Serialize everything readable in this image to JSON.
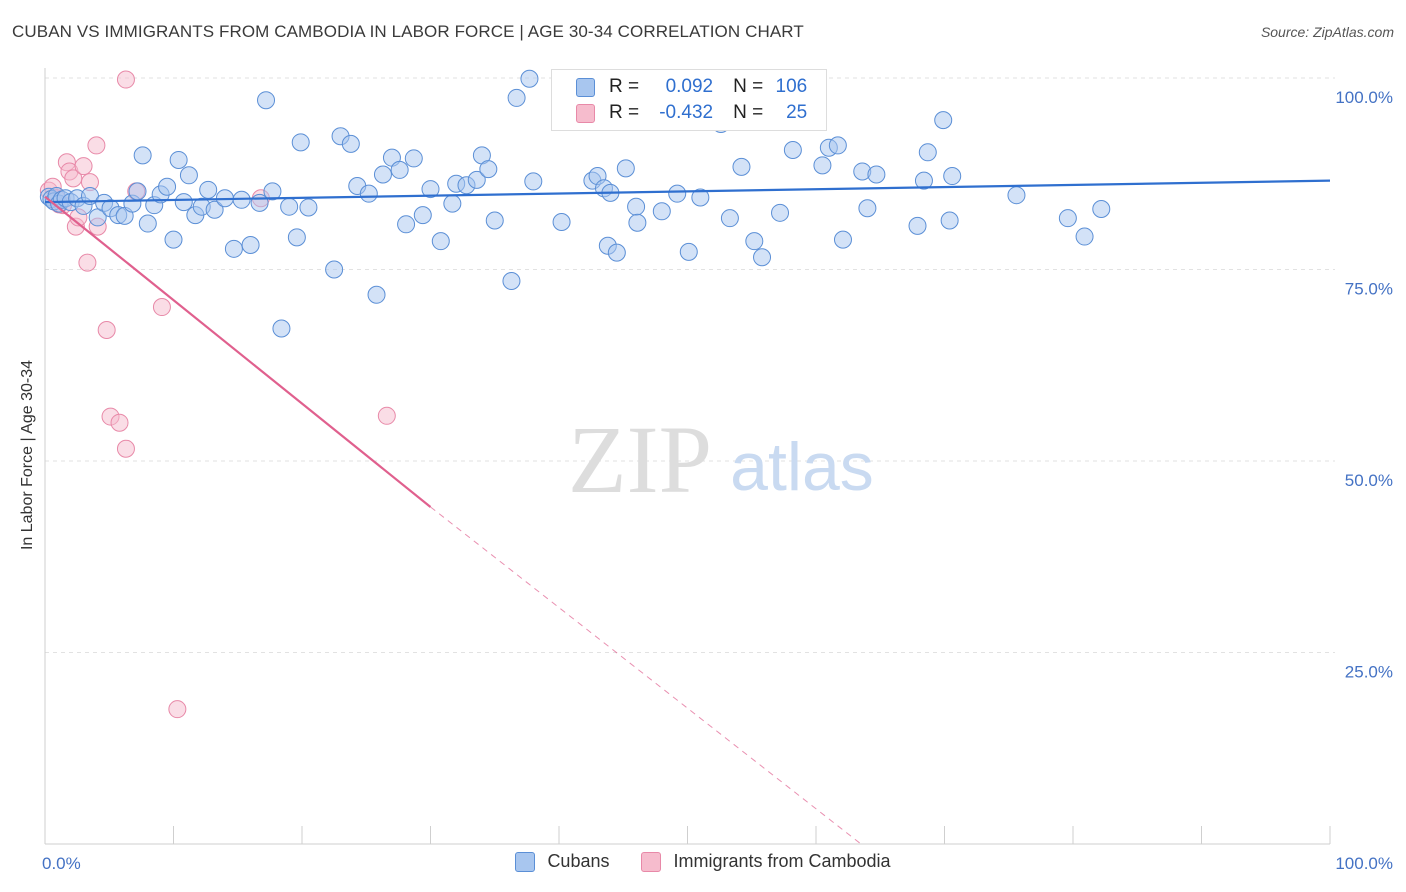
{
  "header": {
    "title": "CUBAN VS IMMIGRANTS FROM CAMBODIA IN LABOR FORCE | AGE 30-34 CORRELATION CHART",
    "source": "Source: ZipAtlas.com"
  },
  "watermark": {
    "zip": "ZIP",
    "atlas": "atlas"
  },
  "colors": {
    "cubans_fill": "#a8c6ef",
    "cubans_stroke": "#5b8fd6",
    "cubans_line": "#2f6fcf",
    "cambodia_fill": "#f6bccd",
    "cambodia_stroke": "#e889a8",
    "cambodia_line": "#e0608e",
    "axis_text": "#4472c4",
    "grid": "#e2e2e2"
  },
  "legend_top": {
    "rows": [
      {
        "r_label": "R =",
        "r_value": "0.092",
        "n_label": "N =",
        "n_value": "106"
      },
      {
        "r_label": "R =",
        "r_value": "-0.432",
        "n_label": "N =",
        "n_value": "25"
      }
    ]
  },
  "legend_bottom": {
    "items": [
      "Cubans",
      "Immigrants from Cambodia"
    ]
  },
  "chart_data": {
    "type": "scatter",
    "title": "CUBAN VS IMMIGRANTS FROM CAMBODIA IN LABOR FORCE | AGE 30-34 CORRELATION CHART",
    "xlabel": "",
    "ylabel": "In Labor Force | Age 30-34",
    "xlim": [
      0,
      100
    ],
    "ylim": [
      0,
      100
    ],
    "x_tick_labels": [
      "0.0%",
      "100.0%"
    ],
    "y_ticks": [
      25,
      50,
      75,
      100
    ],
    "y_tick_labels": [
      "25.0%",
      "50.0%",
      "75.0%",
      "100.0%"
    ],
    "grid": true,
    "legend_position": "bottom",
    "series": [
      {
        "name": "Cubans",
        "r": 0.092,
        "n": 106,
        "trend": {
          "x": [
            0,
            100
          ],
          "y": [
            83.8,
            86.6
          ]
        },
        "points": [
          [
            0.3,
            84.5
          ],
          [
            0.5,
            84.2
          ],
          [
            0.7,
            83.9
          ],
          [
            0.9,
            84.6
          ],
          [
            1.1,
            83.6
          ],
          [
            1.3,
            84.1
          ],
          [
            1.6,
            84.3
          ],
          [
            2.0,
            83.8
          ],
          [
            2.5,
            84.3
          ],
          [
            3.0,
            83.3
          ],
          [
            3.5,
            84.6
          ],
          [
            4.1,
            81.8
          ],
          [
            4.6,
            83.7
          ],
          [
            5.1,
            83.0
          ],
          [
            5.7,
            82.1
          ],
          [
            6.2,
            82.0
          ],
          [
            6.8,
            83.6
          ],
          [
            7.2,
            85.2
          ],
          [
            7.6,
            89.9
          ],
          [
            8.0,
            81.0
          ],
          [
            8.5,
            83.4
          ],
          [
            9.0,
            84.8
          ],
          [
            9.5,
            85.8
          ],
          [
            10.0,
            78.9
          ],
          [
            10.4,
            89.3
          ],
          [
            10.8,
            83.8
          ],
          [
            11.2,
            87.3
          ],
          [
            11.7,
            82.1
          ],
          [
            12.2,
            83.2
          ],
          [
            12.7,
            85.4
          ],
          [
            13.2,
            82.8
          ],
          [
            14.0,
            84.3
          ],
          [
            14.7,
            77.7
          ],
          [
            15.3,
            84.1
          ],
          [
            16.0,
            78.2
          ],
          [
            16.7,
            83.7
          ],
          [
            17.2,
            97.1
          ],
          [
            17.7,
            85.2
          ],
          [
            18.4,
            67.3
          ],
          [
            19.0,
            83.2
          ],
          [
            19.6,
            79.2
          ],
          [
            19.9,
            91.6
          ],
          [
            20.5,
            83.1
          ],
          [
            22.5,
            75.0
          ],
          [
            23.0,
            92.4
          ],
          [
            23.8,
            91.4
          ],
          [
            24.3,
            85.9
          ],
          [
            25.8,
            71.7
          ],
          [
            25.2,
            84.9
          ],
          [
            26.3,
            87.4
          ],
          [
            27.0,
            89.6
          ],
          [
            27.6,
            88.0
          ],
          [
            28.1,
            80.9
          ],
          [
            28.7,
            89.5
          ],
          [
            29.4,
            82.1
          ],
          [
            30.0,
            85.5
          ],
          [
            30.8,
            78.7
          ],
          [
            31.7,
            83.6
          ],
          [
            32.0,
            86.2
          ],
          [
            32.8,
            86.0
          ],
          [
            33.6,
            86.7
          ],
          [
            34.0,
            89.9
          ],
          [
            34.5,
            88.1
          ],
          [
            35.0,
            81.4
          ],
          [
            36.3,
            73.5
          ],
          [
            36.7,
            97.4
          ],
          [
            37.7,
            99.9
          ],
          [
            38.0,
            86.5
          ],
          [
            40.2,
            81.2
          ],
          [
            42.6,
            86.6
          ],
          [
            43.0,
            87.2
          ],
          [
            43.5,
            85.6
          ],
          [
            43.8,
            78.1
          ],
          [
            44.0,
            85.0
          ],
          [
            44.5,
            77.2
          ],
          [
            45.2,
            88.2
          ],
          [
            46.0,
            83.2
          ],
          [
            46.1,
            81.1
          ],
          [
            48.0,
            82.6
          ],
          [
            49.2,
            84.9
          ],
          [
            50.1,
            77.3
          ],
          [
            51.0,
            84.4
          ],
          [
            52.6,
            94.0
          ],
          [
            53.3,
            81.7
          ],
          [
            54.2,
            88.4
          ],
          [
            55.2,
            78.7
          ],
          [
            55.8,
            76.6
          ],
          [
            57.2,
            82.4
          ],
          [
            58.2,
            90.6
          ],
          [
            60.5,
            88.6
          ],
          [
            61.0,
            90.9
          ],
          [
            61.7,
            91.2
          ],
          [
            62.1,
            78.9
          ],
          [
            63.6,
            87.8
          ],
          [
            64.0,
            83.0
          ],
          [
            64.7,
            87.4
          ],
          [
            67.9,
            80.7
          ],
          [
            68.4,
            86.6
          ],
          [
            68.7,
            90.3
          ],
          [
            69.9,
            94.5
          ],
          [
            70.4,
            81.4
          ],
          [
            70.6,
            87.2
          ],
          [
            75.6,
            84.7
          ],
          [
            79.6,
            81.7
          ],
          [
            80.9,
            79.3
          ],
          [
            82.2,
            82.9
          ]
        ]
      },
      {
        "name": "Immigrants from Cambodia",
        "r": -0.432,
        "n": 25,
        "trend": {
          "x": [
            0,
            30
          ],
          "y": [
            84.5,
            44.0
          ]
        },
        "trend_extrapolated": {
          "x": [
            30,
            63.5
          ],
          "y": [
            44.0,
            0
          ]
        },
        "points": [
          [
            0.3,
            85.3
          ],
          [
            0.6,
            85.8
          ],
          [
            0.9,
            84.3
          ],
          [
            1.1,
            83.5
          ],
          [
            1.4,
            83.4
          ],
          [
            1.7,
            89.0
          ],
          [
            1.9,
            87.8
          ],
          [
            2.2,
            86.9
          ],
          [
            2.4,
            80.6
          ],
          [
            2.6,
            81.8
          ],
          [
            3.0,
            88.5
          ],
          [
            3.3,
            75.9
          ],
          [
            3.5,
            86.4
          ],
          [
            4.0,
            91.2
          ],
          [
            4.1,
            80.6
          ],
          [
            4.8,
            67.1
          ],
          [
            5.1,
            55.8
          ],
          [
            5.8,
            55.0
          ],
          [
            6.3,
            51.6
          ],
          [
            6.3,
            99.8
          ],
          [
            7.1,
            85.2
          ],
          [
            9.1,
            70.1
          ],
          [
            10.3,
            17.6
          ],
          [
            16.8,
            84.3
          ],
          [
            26.6,
            55.9
          ]
        ]
      }
    ]
  }
}
